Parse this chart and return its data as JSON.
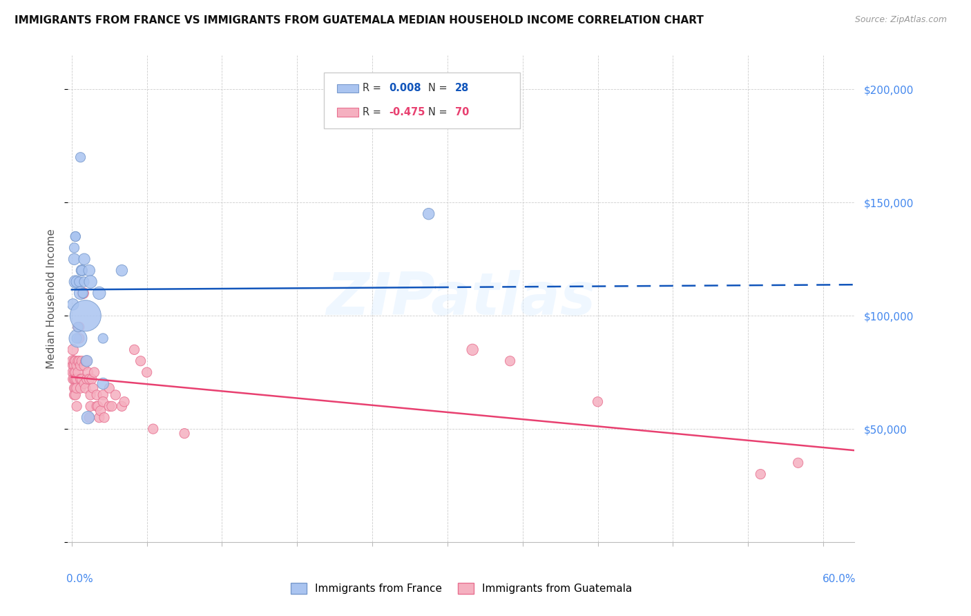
{
  "title": "IMMIGRANTS FROM FRANCE VS IMMIGRANTS FROM GUATEMALA MEDIAN HOUSEHOLD INCOME CORRELATION CHART",
  "source": "Source: ZipAtlas.com",
  "ylabel": "Median Household Income",
  "ylim": [
    0,
    215000
  ],
  "xlim": [
    -0.003,
    0.625
  ],
  "france_color": "#aac4f0",
  "france_edge": "#7799cc",
  "guatemala_color": "#f5b0c0",
  "guatemala_edge": "#e87090",
  "france_line_color": "#1155bb",
  "guatemala_line_color": "#e84070",
  "france_R": 0.008,
  "france_N": "28",
  "guatemala_R": -0.475,
  "guatemala_N": "70",
  "france_points_x": [
    0.001,
    0.002,
    0.002,
    0.003,
    0.003,
    0.003,
    0.004,
    0.004,
    0.005,
    0.005,
    0.006,
    0.007,
    0.007,
    0.008,
    0.008,
    0.009,
    0.01,
    0.01,
    0.011,
    0.012,
    0.013,
    0.014,
    0.015,
    0.022,
    0.025,
    0.025,
    0.04,
    0.285
  ],
  "france_points_y": [
    105000,
    130000,
    125000,
    135000,
    135000,
    115000,
    115000,
    90000,
    90000,
    95000,
    115000,
    170000,
    110000,
    120000,
    120000,
    110000,
    125000,
    115000,
    100000,
    80000,
    55000,
    120000,
    115000,
    110000,
    90000,
    70000,
    120000,
    145000
  ],
  "france_sizes": [
    40,
    30,
    40,
    30,
    30,
    50,
    40,
    30,
    100,
    30,
    30,
    30,
    50,
    40,
    30,
    30,
    40,
    30,
    300,
    40,
    50,
    40,
    50,
    50,
    30,
    40,
    40,
    40
  ],
  "guatemala_points_x": [
    0.001,
    0.001,
    0.001,
    0.001,
    0.001,
    0.002,
    0.002,
    0.002,
    0.002,
    0.002,
    0.002,
    0.003,
    0.003,
    0.003,
    0.003,
    0.003,
    0.004,
    0.004,
    0.004,
    0.004,
    0.005,
    0.005,
    0.005,
    0.006,
    0.006,
    0.006,
    0.007,
    0.007,
    0.007,
    0.008,
    0.008,
    0.009,
    0.01,
    0.01,
    0.011,
    0.011,
    0.012,
    0.012,
    0.013,
    0.014,
    0.014,
    0.015,
    0.015,
    0.016,
    0.017,
    0.018,
    0.02,
    0.02,
    0.021,
    0.022,
    0.023,
    0.025,
    0.025,
    0.026,
    0.03,
    0.03,
    0.032,
    0.035,
    0.04,
    0.042,
    0.05,
    0.055,
    0.06,
    0.065,
    0.09,
    0.32,
    0.35,
    0.42,
    0.55,
    0.58
  ],
  "guatemala_points_y": [
    80000,
    78000,
    75000,
    72000,
    85000,
    80000,
    78000,
    75000,
    68000,
    72000,
    65000,
    80000,
    75000,
    72000,
    68000,
    65000,
    78000,
    72000,
    68000,
    60000,
    95000,
    80000,
    75000,
    95000,
    90000,
    80000,
    78000,
    72000,
    68000,
    80000,
    72000,
    110000,
    78000,
    70000,
    80000,
    68000,
    80000,
    72000,
    75000,
    72000,
    55000,
    65000,
    60000,
    72000,
    68000,
    75000,
    65000,
    60000,
    60000,
    55000,
    58000,
    65000,
    62000,
    55000,
    68000,
    60000,
    60000,
    65000,
    60000,
    62000,
    85000,
    80000,
    75000,
    50000,
    48000,
    85000,
    80000,
    62000,
    30000,
    35000
  ],
  "guatemala_sizes": [
    40,
    30,
    35,
    30,
    35,
    30,
    30,
    30,
    30,
    30,
    30,
    30,
    30,
    30,
    30,
    30,
    30,
    30,
    30,
    30,
    30,
    30,
    30,
    30,
    30,
    30,
    30,
    30,
    30,
    30,
    30,
    40,
    30,
    30,
    30,
    30,
    30,
    30,
    30,
    30,
    30,
    30,
    30,
    30,
    30,
    30,
    30,
    30,
    30,
    30,
    30,
    30,
    30,
    30,
    30,
    30,
    30,
    30,
    30,
    30,
    30,
    30,
    30,
    30,
    30,
    40,
    30,
    30,
    30,
    30
  ],
  "france_line_solid_end": 0.29,
  "france_line_dash_start": 0.29,
  "background_color": "#ffffff",
  "grid_color": "#cccccc",
  "tick_label_color": "#4488ee",
  "watermark_text": "ZIPatlas",
  "legend_france_R_text": "R =",
  "legend_france_R_val": "0.008",
  "legend_france_N_text": "N =",
  "legend_france_N_val": "28",
  "legend_guat_R_text": "R =",
  "legend_guat_R_val": "-0.475",
  "legend_guat_N_text": "N =",
  "legend_guat_N_val": "70"
}
